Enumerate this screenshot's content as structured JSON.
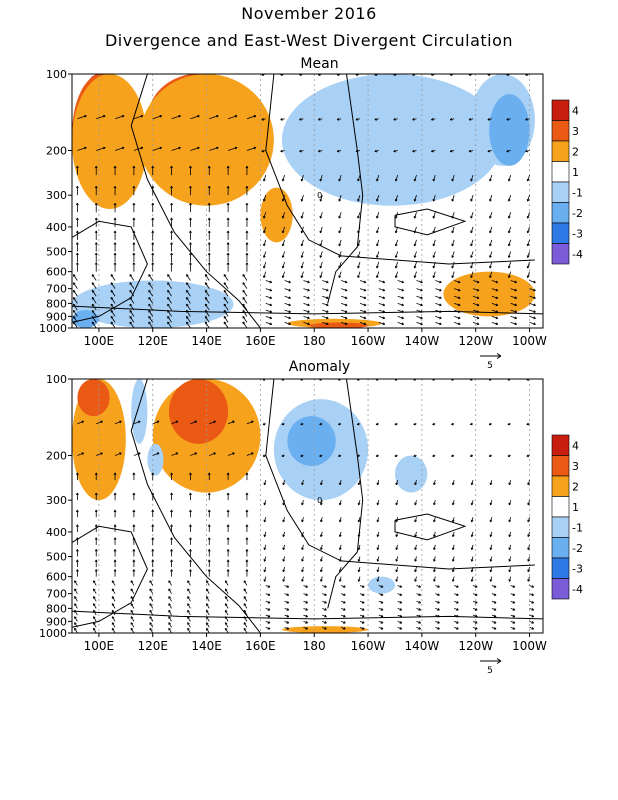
{
  "page": {
    "title": "November 2016",
    "subtitle": "Divergence and East-West Divergent Circulation"
  },
  "colors": {
    "pos4": "#c81e10",
    "pos3": "#ea5a14",
    "pos2": "#f7a21c",
    "pos1": "#ffffff",
    "neg1": "#a9d0f5",
    "neg2": "#6aaff0",
    "neg3": "#2f79e6",
    "neg4": "#7a5cd8",
    "contour": "#000000",
    "vector": "#000000",
    "grid": "#9a9a9a"
  },
  "chart_data": [
    {
      "type": "heatmap",
      "title": "Mean",
      "xlabel": "",
      "ylabel": "",
      "x_ticks": [
        "100E",
        "120E",
        "140E",
        "160E",
        "180",
        "160W",
        "140W",
        "120W",
        "100W"
      ],
      "x_range_deg_east": [
        90,
        265
      ],
      "y_ticks": [
        "100",
        "200",
        "300",
        "400",
        "500",
        "600",
        "700",
        "800",
        "900",
        "1000"
      ],
      "y_range_hpa": [
        100,
        1000
      ],
      "y_scale": "log",
      "vector_reference": "5",
      "contour_labels": [
        "0"
      ],
      "colorbar": [
        "4",
        "3",
        "2",
        "1",
        "-1",
        "-2",
        "-3",
        "-4"
      ],
      "regions": [
        {
          "level": 4,
          "lon": [
            92,
            108
          ],
          "p": [
            100,
            260
          ]
        },
        {
          "level": 4,
          "lon": [
            122,
            150
          ],
          "p": [
            100,
            180
          ]
        },
        {
          "level": 3,
          "lon": [
            90,
            112
          ],
          "p": [
            100,
            300
          ]
        },
        {
          "level": 3,
          "lon": [
            118,
            155
          ],
          "p": [
            100,
            230
          ]
        },
        {
          "level": 2,
          "lon": [
            90,
            118
          ],
          "p": [
            100,
            340
          ]
        },
        {
          "level": 2,
          "lon": [
            115,
            165
          ],
          "p": [
            100,
            330
          ]
        },
        {
          "level": 2,
          "lon": [
            160,
            172
          ],
          "p": [
            280,
            460
          ]
        },
        {
          "level": -2,
          "lon": [
            178,
            230
          ],
          "p": [
            150,
            300
          ]
        },
        {
          "level": -1,
          "lon": [
            168,
            250
          ],
          "p": [
            100,
            330
          ]
        },
        {
          "level": -1,
          "lon": [
            238,
            262
          ],
          "p": [
            100,
            230
          ]
        },
        {
          "level": -2,
          "lon": [
            245,
            260
          ],
          "p": [
            120,
            230
          ]
        },
        {
          "level": -1,
          "lon": [
            90,
            150
          ],
          "p": [
            650,
            1000
          ]
        },
        {
          "level": -2,
          "lon": [
            90,
            100
          ],
          "p": [
            850,
            1000
          ]
        },
        {
          "level": 2,
          "lon": [
            228,
            262
          ],
          "p": [
            600,
            900
          ]
        },
        {
          "level": 2,
          "lon": [
            170,
            205
          ],
          "p": [
            920,
            1000
          ]
        },
        {
          "level": 3,
          "lon": [
            178,
            200
          ],
          "p": [
            955,
            1000
          ]
        }
      ]
    },
    {
      "type": "heatmap",
      "title": "Anomaly",
      "xlabel": "",
      "ylabel": "",
      "x_ticks": [
        "100E",
        "120E",
        "140E",
        "160E",
        "180",
        "160W",
        "140W",
        "120W",
        "100W"
      ],
      "x_range_deg_east": [
        90,
        265
      ],
      "y_ticks": [
        "100",
        "200",
        "300",
        "400",
        "500",
        "600",
        "700",
        "800",
        "900",
        "1000"
      ],
      "y_range_hpa": [
        100,
        1000
      ],
      "y_scale": "log",
      "vector_reference": "5",
      "contour_labels": [
        "0"
      ],
      "colorbar": [
        "4",
        "3",
        "2",
        "1",
        "-1",
        "-2",
        "-3",
        "-4"
      ],
      "regions": [
        {
          "level": 2,
          "lon": [
            90,
            110
          ],
          "p": [
            100,
            300
          ]
        },
        {
          "level": 3,
          "lon": [
            92,
            104
          ],
          "p": [
            100,
            140
          ]
        },
        {
          "level": 2,
          "lon": [
            120,
            160
          ],
          "p": [
            100,
            280
          ]
        },
        {
          "level": 3,
          "lon": [
            126,
            148
          ],
          "p": [
            100,
            180
          ]
        },
        {
          "level": -1,
          "lon": [
            112,
            118
          ],
          "p": [
            100,
            180
          ]
        },
        {
          "level": -1,
          "lon": [
            118,
            124
          ],
          "p": [
            180,
            240
          ]
        },
        {
          "level": -1,
          "lon": [
            165,
            200
          ],
          "p": [
            120,
            300
          ]
        },
        {
          "level": -2,
          "lon": [
            170,
            188
          ],
          "p": [
            140,
            220
          ]
        },
        {
          "level": -1,
          "lon": [
            210,
            222
          ],
          "p": [
            200,
            280
          ]
        },
        {
          "level": 2,
          "lon": [
            168,
            200
          ],
          "p": [
            940,
            1000
          ]
        },
        {
          "level": -1,
          "lon": [
            200,
            210
          ],
          "p": [
            600,
            700
          ]
        }
      ]
    }
  ]
}
